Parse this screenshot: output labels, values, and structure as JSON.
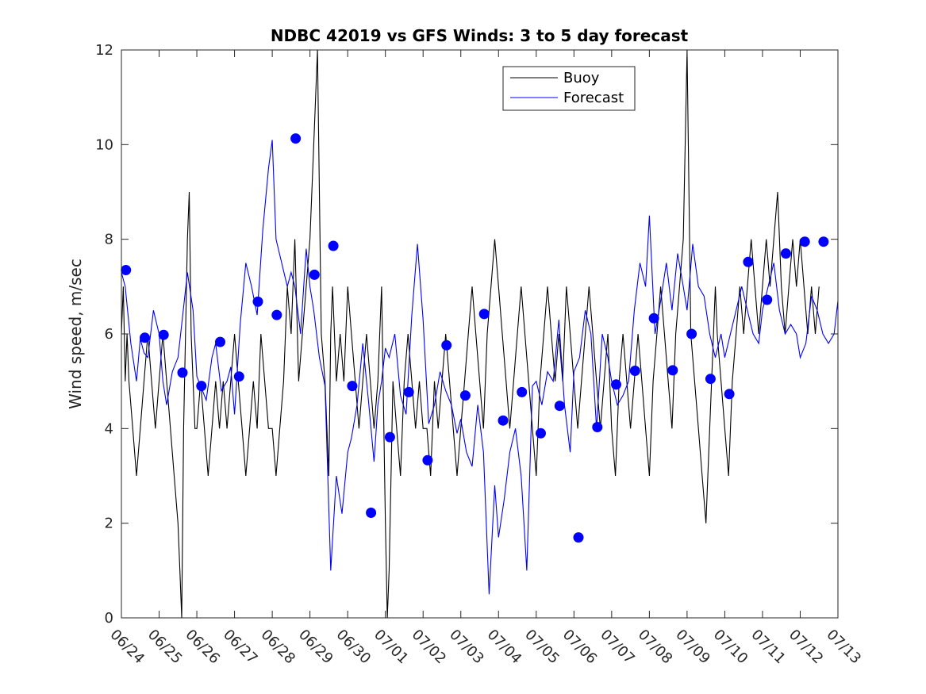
{
  "chart_data": {
    "type": "line",
    "title": "NDBC 42019 vs GFS Winds: 3 to 5 day forecast",
    "xlabel": "",
    "ylabel": "Wind speed, m/sec",
    "xlim": [
      0,
      19
    ],
    "ylim": [
      0,
      12
    ],
    "x_tick_labels": [
      "06/24",
      "06/25",
      "06/26",
      "06/27",
      "06/28",
      "06/29",
      "06/30",
      "07/01",
      "07/02",
      "07/03",
      "07/04",
      "07/05",
      "07/06",
      "07/07",
      "07/08",
      "07/09",
      "07/10",
      "07/11",
      "07/12",
      "07/13"
    ],
    "y_ticks": [
      0,
      2,
      4,
      6,
      8,
      10,
      12
    ],
    "legend": {
      "position": "top-right",
      "entries": [
        {
          "name": "Buoy",
          "color": "#000000"
        },
        {
          "name": "Forecast",
          "color": "#0000ff"
        }
      ]
    },
    "grid": false,
    "series": [
      {
        "name": "Buoy",
        "style": "line",
        "color": "#000000",
        "x": [
          0.0,
          0.05,
          0.1,
          0.15,
          0.2,
          0.3,
          0.4,
          0.5,
          0.6,
          0.7,
          0.8,
          0.9,
          1.0,
          1.1,
          1.2,
          1.3,
          1.4,
          1.5,
          1.55,
          1.6,
          1.65,
          1.7,
          1.75,
          1.8,
          1.85,
          1.9,
          1.95,
          2.0,
          2.1,
          2.2,
          2.3,
          2.4,
          2.5,
          2.6,
          2.7,
          2.8,
          2.9,
          3.0,
          3.1,
          3.2,
          3.3,
          3.4,
          3.5,
          3.6,
          3.7,
          3.8,
          3.9,
          4.0,
          4.1,
          4.2,
          4.3,
          4.4,
          4.5,
          4.6,
          4.7,
          4.8,
          4.9,
          5.0,
          5.1,
          5.2,
          5.3,
          5.4,
          5.45,
          5.5,
          5.55,
          5.6,
          5.65,
          5.7,
          5.8,
          5.9,
          6.0,
          6.1,
          6.2,
          6.3,
          6.4,
          6.5,
          6.6,
          6.7,
          6.8,
          6.9,
          7.0,
          7.05,
          7.1,
          7.15,
          7.2,
          7.3,
          7.4,
          7.5,
          7.6,
          7.7,
          7.8,
          7.9,
          8.0,
          8.1,
          8.2,
          8.3,
          8.4,
          8.5,
          8.6,
          8.7,
          8.8,
          8.9,
          9.0,
          9.1,
          9.2,
          9.3,
          9.4,
          9.5,
          9.6,
          9.7,
          9.8,
          9.9,
          10.0,
          10.1,
          10.2,
          10.3,
          10.4,
          10.5,
          10.6,
          10.7,
          10.8,
          10.9,
          11.0,
          11.1,
          11.2,
          11.3,
          11.4,
          11.5,
          11.6,
          11.7,
          11.8,
          11.9,
          12.0,
          12.1,
          12.2,
          12.3,
          12.4,
          12.5,
          12.6,
          12.7,
          12.8,
          12.9,
          13.0,
          13.1,
          13.2,
          13.3,
          13.4,
          13.5,
          13.6,
          13.7,
          13.8,
          13.9,
          14.0,
          14.1,
          14.2,
          14.3,
          14.4,
          14.5,
          14.6,
          14.7,
          14.8,
          14.9,
          15.0,
          15.1,
          15.2,
          15.3,
          15.4,
          15.5,
          15.6,
          15.65,
          15.7,
          15.75,
          15.8,
          15.9,
          16.0,
          16.1,
          16.2,
          16.3,
          16.4,
          16.5,
          16.6,
          16.7,
          16.8,
          16.9,
          17.0,
          17.1,
          17.2,
          17.3,
          17.4,
          17.5,
          17.6,
          17.7,
          17.8,
          17.9,
          18.0,
          18.1,
          18.2,
          18.3,
          18.4,
          18.5
        ],
        "y": [
          6,
          7,
          5,
          6,
          5,
          4,
          3,
          4,
          5,
          6,
          5,
          4,
          5,
          6,
          5,
          4,
          3,
          2,
          1,
          0,
          4,
          6,
          8,
          9,
          6,
          5,
          4,
          4,
          5,
          4,
          3,
          4,
          5,
          4,
          5,
          4,
          5,
          6,
          5,
          4,
          3,
          4,
          5,
          4,
          6,
          5,
          4,
          4,
          3,
          4,
          5,
          7,
          6,
          8,
          5,
          6,
          7,
          8,
          10,
          12,
          6,
          5,
          4,
          3,
          6,
          7,
          6,
          5,
          6,
          5,
          7,
          6,
          5,
          4,
          5,
          6,
          5,
          4,
          5,
          7,
          2,
          0,
          1,
          3,
          5,
          4,
          3,
          5,
          6,
          5,
          4,
          5,
          4,
          4,
          3,
          5,
          4,
          5,
          6,
          5,
          4,
          3,
          4,
          5,
          6,
          7,
          6,
          5,
          4,
          6,
          7,
          8,
          7,
          6,
          5,
          4,
          5,
          6,
          7,
          6,
          5,
          4,
          3,
          5,
          6,
          7,
          6,
          5,
          6,
          5,
          7,
          6,
          5,
          4,
          5,
          6,
          7,
          6,
          5,
          4,
          5,
          6,
          4,
          3,
          5,
          6,
          5,
          4,
          5,
          6,
          5,
          4,
          3,
          5,
          6,
          7,
          6,
          5,
          4,
          6,
          7,
          8,
          12,
          6,
          5,
          4,
          3,
          2,
          4,
          5,
          6,
          7,
          6,
          5,
          4,
          3,
          5,
          6,
          7,
          6,
          7,
          8,
          7,
          6,
          7,
          8,
          7,
          8,
          9,
          7,
          6,
          7,
          8,
          7,
          8,
          7,
          6,
          7,
          6,
          7
        ]
      },
      {
        "name": "Forecast",
        "style": "line",
        "color": "#0000ff",
        "x": [
          0.0,
          0.1,
          0.25,
          0.4,
          0.5,
          0.6,
          0.7,
          0.85,
          1.0,
          1.1,
          1.2,
          1.35,
          1.5,
          1.6,
          1.75,
          1.9,
          2.0,
          2.1,
          2.25,
          2.4,
          2.5,
          2.65,
          2.8,
          2.9,
          3.0,
          3.15,
          3.3,
          3.45,
          3.6,
          3.75,
          3.9,
          4.0,
          4.1,
          4.25,
          4.4,
          4.5,
          4.6,
          4.75,
          4.9,
          5.0,
          5.1,
          5.25,
          5.4,
          5.55,
          5.7,
          5.85,
          6.0,
          6.1,
          6.25,
          6.4,
          6.55,
          6.7,
          6.8,
          6.9,
          7.0,
          7.1,
          7.25,
          7.4,
          7.55,
          7.7,
          7.85,
          8.0,
          8.15,
          8.3,
          8.45,
          8.6,
          8.75,
          8.9,
          9.0,
          9.15,
          9.3,
          9.45,
          9.6,
          9.75,
          9.9,
          10.0,
          10.15,
          10.3,
          10.45,
          10.6,
          10.75,
          10.9,
          11.0,
          11.15,
          11.3,
          11.45,
          11.6,
          11.75,
          11.9,
          12.0,
          12.15,
          12.3,
          12.45,
          12.6,
          12.75,
          12.9,
          13.0,
          13.15,
          13.3,
          13.45,
          13.6,
          13.75,
          13.9,
          14.0,
          14.15,
          14.3,
          14.45,
          14.6,
          14.75,
          14.9,
          15.0,
          15.15,
          15.3,
          15.45,
          15.6,
          15.75,
          15.9,
          16.0,
          16.15,
          16.3,
          16.45,
          16.6,
          16.75,
          16.9,
          17.0,
          17.15,
          17.3,
          17.45,
          17.6,
          17.75,
          17.9,
          18.0,
          18.15,
          18.3,
          18.45,
          18.6,
          18.75,
          18.9,
          19.0
        ],
        "y": [
          7.3,
          7.0,
          5.8,
          5.0,
          5.9,
          5.6,
          5.5,
          6.5,
          6.0,
          5.0,
          4.5,
          5.2,
          5.5,
          6.2,
          7.3,
          6.5,
          5.1,
          4.9,
          4.6,
          5.5,
          5.8,
          4.8,
          5.0,
          5.3,
          4.3,
          6.2,
          7.5,
          7.0,
          6.4,
          8.2,
          9.5,
          10.1,
          8.0,
          7.5,
          7.0,
          7.3,
          7.0,
          6.0,
          7.8,
          7.0,
          6.5,
          5.5,
          4.9,
          1.0,
          3.0,
          2.2,
          3.5,
          3.8,
          4.5,
          5.8,
          4.6,
          3.3,
          4.5,
          5.0,
          5.7,
          5.5,
          6.0,
          4.7,
          4.3,
          6.4,
          7.9,
          6.3,
          4.1,
          4.5,
          5.2,
          4.8,
          4.5,
          3.9,
          4.2,
          3.5,
          3.2,
          4.5,
          3.5,
          0.5,
          2.8,
          1.7,
          2.5,
          3.5,
          4.0,
          3.0,
          1.0,
          4.9,
          5.0,
          4.5,
          5.2,
          5.0,
          6.3,
          4.5,
          3.5,
          5.2,
          5.5,
          6.5,
          6.0,
          4.0,
          6.0,
          5.5,
          5.0,
          4.5,
          4.7,
          5.0,
          6.5,
          7.5,
          7.0,
          8.5,
          6.0,
          6.7,
          7.5,
          6.5,
          7.7,
          7.0,
          6.5,
          7.9,
          7.0,
          6.8,
          6.0,
          5.5,
          6.0,
          5.5,
          6.0,
          6.5,
          7.0,
          6.5,
          6.0,
          5.8,
          6.5,
          7.0,
          7.5,
          6.5,
          6.0,
          6.2,
          6.0,
          5.5,
          5.8,
          6.8,
          6.5,
          6.0,
          5.8,
          6.0,
          6.7
        ]
      },
      {
        "name": "",
        "style": "markers",
        "color": "#0000ff",
        "x": [
          0.12,
          0.62,
          1.12,
          1.62,
          2.12,
          2.62,
          3.12,
          3.62,
          4.12,
          4.62,
          5.12,
          5.62,
          6.12,
          6.62,
          7.12,
          7.62,
          8.12,
          8.62,
          9.12,
          9.62,
          10.12,
          10.62,
          11.12,
          11.62,
          12.12,
          12.62,
          13.12,
          13.62,
          14.12,
          14.62,
          15.12,
          15.62,
          16.12,
          16.62,
          17.12,
          17.62,
          18.12,
          18.62
        ],
        "y": [
          7.35,
          5.92,
          5.98,
          5.18,
          4.9,
          5.83,
          5.1,
          6.68,
          6.4,
          10.13,
          7.25,
          7.86,
          4.9,
          2.22,
          3.82,
          4.77,
          3.33,
          5.76,
          4.7,
          6.42,
          4.17,
          4.77,
          3.9,
          4.48,
          1.7,
          4.03,
          4.93,
          5.22,
          6.33,
          5.23,
          6.0,
          5.05,
          4.73,
          7.52,
          6.72,
          7.7,
          7.95,
          7.95
        ]
      }
    ]
  }
}
